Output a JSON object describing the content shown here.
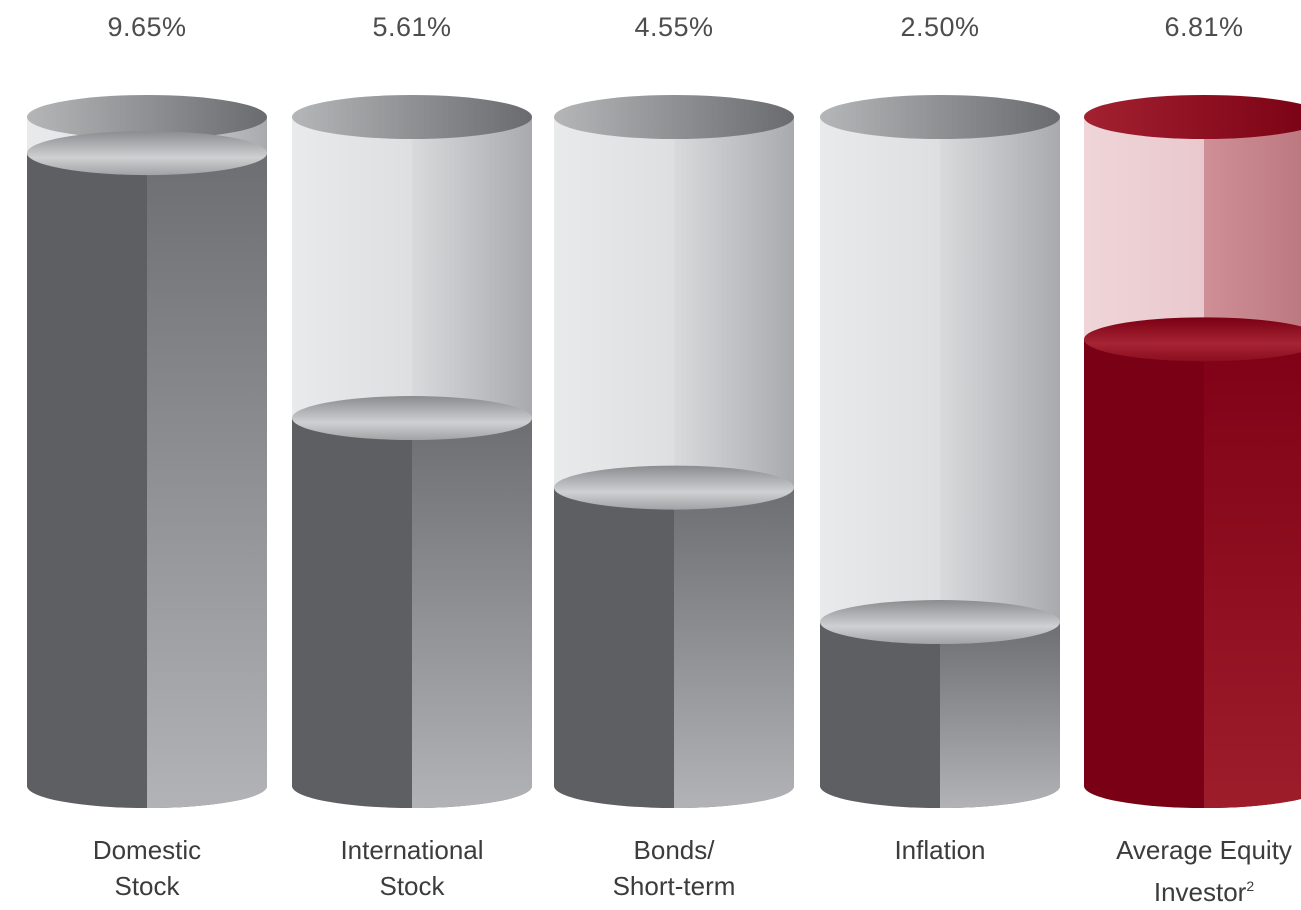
{
  "chart_data": {
    "type": "bar",
    "title": "",
    "xlabel": "",
    "ylabel": "",
    "categories": [
      {
        "lines": [
          "Domestic",
          "Stock"
        ],
        "sup": ""
      },
      {
        "lines": [
          "International",
          "Stock"
        ],
        "sup": ""
      },
      {
        "lines": [
          "Bonds/",
          "Short-term"
        ],
        "sup": ""
      },
      {
        "lines": [
          "Inflation"
        ],
        "sup": ""
      },
      {
        "lines": [
          "Average Equity",
          "Investor"
        ],
        "sup": "2"
      }
    ],
    "values": [
      9.65,
      5.61,
      4.55,
      2.5,
      6.81
    ],
    "value_labels": [
      "9.65%",
      "5.61%",
      "4.55%",
      "2.50%",
      "6.81%"
    ],
    "ylim": [
      0,
      10.2
    ],
    "grid": false,
    "legend": "none",
    "style": "3d-cylinder",
    "colors": {
      "fill_gray": "#5e5f62",
      "fill_gray_light": "#a7a8ab",
      "fill_red": "#7a0015",
      "fill_red_light": "#9b1b2a",
      "empty_gray": "#e6e7e8",
      "empty_red": "#eccdd1",
      "text": "#4d4d4f"
    },
    "highlight_index": 4
  }
}
